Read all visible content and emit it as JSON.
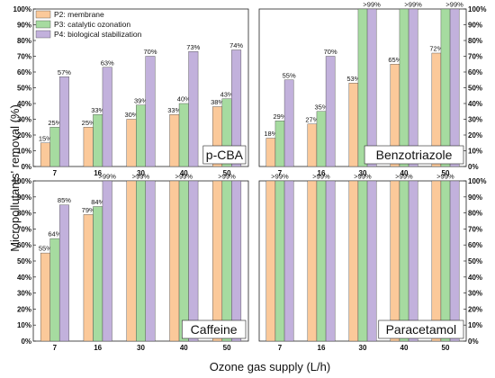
{
  "chart_data": {
    "type": "bar",
    "ylabel": "Micropollutants' removal (%)",
    "xlabel": "Ozone gas supply (L/h)",
    "categories": [
      "7",
      "16",
      "30",
      "40",
      "50"
    ],
    "ylim": [
      0,
      100
    ],
    "yticks": [
      "0%",
      "10%",
      "20%",
      "30%",
      "40%",
      "50%",
      "60%",
      "70%",
      "80%",
      "90%",
      "100%"
    ],
    "legend": {
      "placement": "top-left",
      "entries": [
        "P2: membrane",
        "P3: catalytic ozonation",
        "P4: biological stabilization"
      ]
    },
    "colors": {
      "P2": "#fbc99a",
      "P3": "#a6dba0",
      "P4": "#c2b1dc",
      "edge": "#444444"
    },
    "panels": [
      {
        "title": "p-CBA",
        "series": [
          {
            "name": "P2: membrane",
            "values": [
              15,
              25,
              30,
              33,
              38
            ],
            "labels": [
              "15%",
              "25%",
              "30%",
              "33%",
              "38%"
            ]
          },
          {
            "name": "P3: catalytic ozonation",
            "values": [
              25,
              33,
              39,
              40,
              43
            ],
            "labels": [
              "25%",
              "33%",
              "39%",
              "40%",
              "43%"
            ]
          },
          {
            "name": "P4: biological stabilization",
            "values": [
              57,
              63,
              70,
              73,
              74
            ],
            "labels": [
              "57%",
              "63%",
              "70%",
              "73%",
              "74%"
            ]
          }
        ]
      },
      {
        "title": "Benzotriazole",
        "series": [
          {
            "name": "P2: membrane",
            "values": [
              18,
              27,
              53,
              65,
              72
            ],
            "labels": [
              "18%",
              "27%",
              "53%",
              "65%",
              "72%"
            ]
          },
          {
            "name": "P3: catalytic ozonation",
            "values": [
              29,
              35,
              100,
              100,
              100
            ],
            "labels": [
              "29%",
              "35%",
              "",
              "",
              ""
            ]
          },
          {
            "name": "P4: biological stabilization",
            "values": [
              55,
              70,
              100,
              100,
              100
            ],
            "labels": [
              "55%",
              "70%",
              ">99%",
              ">99%",
              ">99%"
            ]
          }
        ]
      },
      {
        "title": "Caffeine",
        "series": [
          {
            "name": "P2: membrane",
            "values": [
              55,
              79,
              100,
              100,
              100
            ],
            "labels": [
              "55%",
              "79%",
              "",
              "",
              ""
            ]
          },
          {
            "name": "P3: catalytic ozonation",
            "values": [
              64,
              84,
              100,
              100,
              100
            ],
            "labels": [
              "64%",
              "84%",
              ">99%",
              ">99%",
              ">99%"
            ]
          },
          {
            "name": "P4: biological stabilization",
            "values": [
              85,
              100,
              100,
              100,
              100
            ],
            "labels": [
              "85%",
              ">99%",
              "",
              "",
              ""
            ]
          }
        ]
      },
      {
        "title": "Paracetamol",
        "series": [
          {
            "name": "P2: membrane",
            "values": [
              100,
              100,
              100,
              100,
              100
            ],
            "labels": [
              "",
              "",
              "",
              "",
              ""
            ]
          },
          {
            "name": "P3: catalytic ozonation",
            "values": [
              100,
              100,
              100,
              100,
              100
            ],
            "labels": [
              ">99%",
              ">99%",
              ">99%",
              ">99%",
              ">99%"
            ]
          },
          {
            "name": "P4: biological stabilization",
            "values": [
              100,
              100,
              100,
              100,
              100
            ],
            "labels": [
              "",
              "",
              "",
              "",
              ""
            ]
          }
        ]
      }
    ]
  }
}
